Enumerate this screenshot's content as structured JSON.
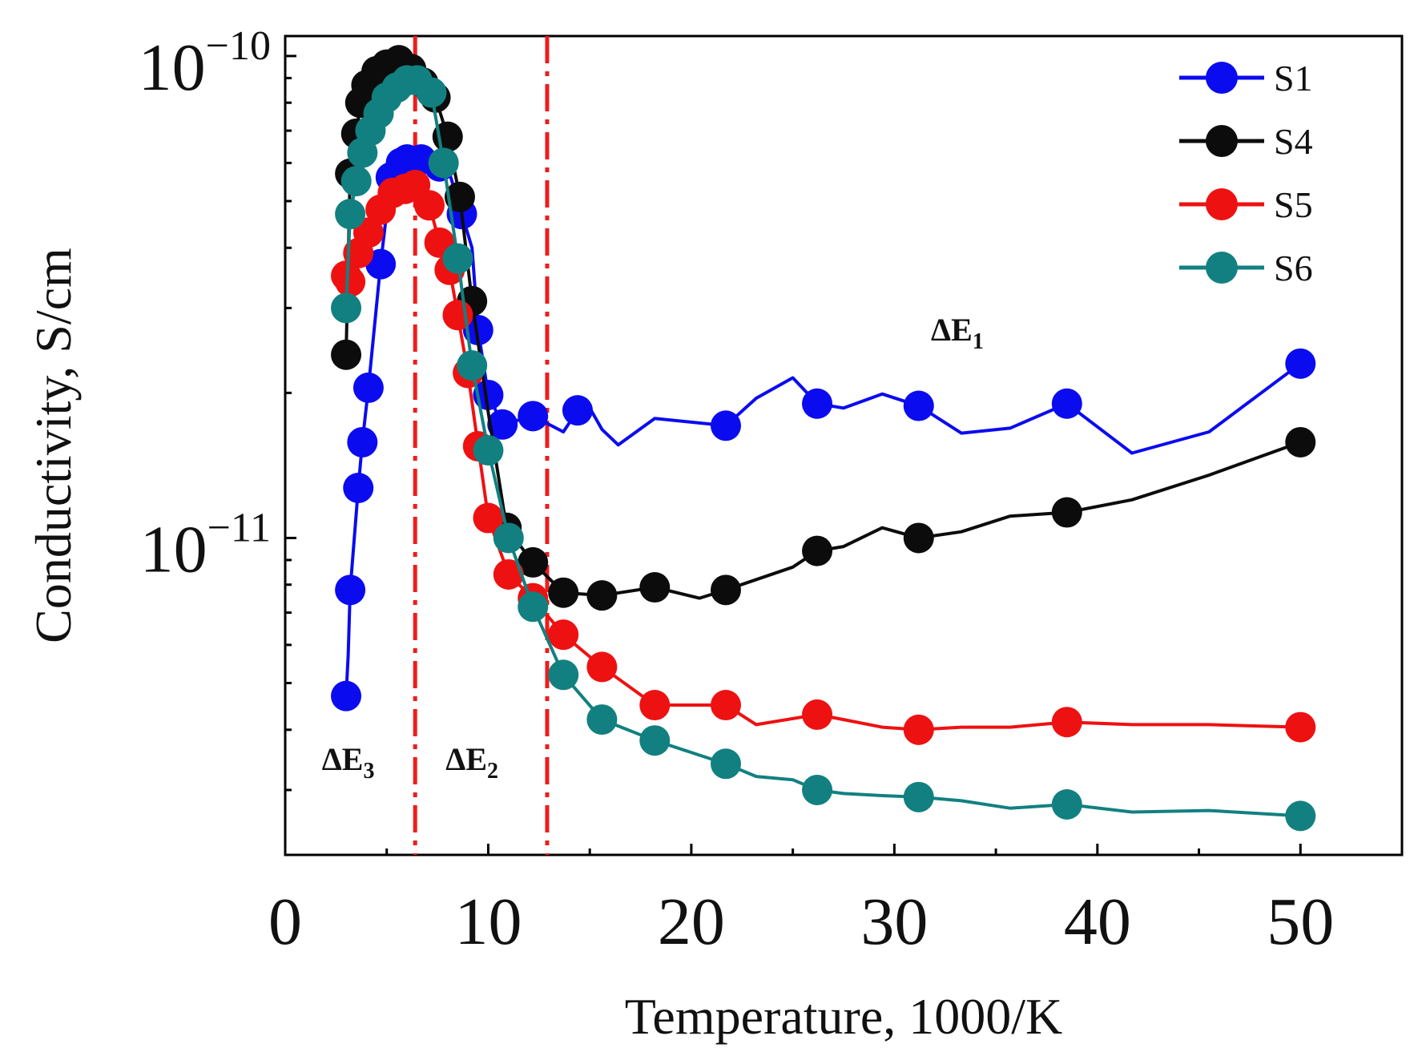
{
  "chart_data": {
    "type": "line",
    "xlabel": "Temperature, 1000/K",
    "ylabel": "Conductivity, S/cm",
    "xlim": [
      0,
      55
    ],
    "ylim": [
      2.2e-12,
      1.1e-10
    ],
    "yscale": "log",
    "x_ticks": [
      0,
      10,
      20,
      30,
      40,
      50
    ],
    "x_tick_labels": [
      "0",
      "10",
      "20",
      "30",
      "40",
      "50"
    ],
    "y_ticks": [
      1e-10,
      1e-11
    ],
    "y_tick_labels": [
      {
        "base": "10",
        "exp": "−10"
      },
      {
        "base": "10",
        "exp": "−11"
      }
    ],
    "legend_position": "top-right",
    "vertical_lines": [
      {
        "x": 6.4,
        "style": "dash-dot",
        "color": "#ee1c1c"
      },
      {
        "x": 12.9,
        "style": "dash-dot",
        "color": "#ee1c1c"
      }
    ],
    "annotations": [
      {
        "text": "ΔE",
        "sub": "1",
        "x": 33.1,
        "y": 2.57e-11
      },
      {
        "text": "ΔE",
        "sub": "2",
        "x": 9.2,
        "y": 3.3e-12
      },
      {
        "text": "ΔE",
        "sub": "3",
        "x": 3.1,
        "y": 3.3e-12
      }
    ],
    "series": [
      {
        "name": "S1",
        "color": "#0b0bf0",
        "x": [
          3.0,
          3.1,
          3.2,
          3.6,
          3.8,
          4.1,
          4.7,
          5.2,
          5.7,
          6.0,
          6.7,
          7.3,
          7.6,
          8.1,
          8.7,
          9.2,
          9.5,
          10.0,
          10.7,
          12.2,
          13.7,
          14.4,
          15.1,
          15.6,
          16.4,
          18.2,
          21.7,
          23.2,
          25.0,
          26.2,
          27.5,
          29.4,
          31.2,
          33.3,
          35.7,
          38.5,
          41.7,
          45.5,
          50.0
        ],
        "y": [
          4.7e-12,
          5.7e-12,
          7.8e-12,
          1.27e-11,
          1.58e-11,
          2.05e-11,
          3.7e-11,
          5.6e-11,
          6e-11,
          6.1e-11,
          6.1e-11,
          6.3e-11,
          5.9e-11,
          5.7e-11,
          4.7e-11,
          4e-11,
          2.7e-11,
          1.98e-11,
          1.72e-11,
          1.79e-11,
          1.66e-11,
          1.84e-11,
          1.83e-11,
          1.68e-11,
          1.56e-11,
          1.77e-11,
          1.71e-11,
          1.95e-11,
          2.15e-11,
          1.9e-11,
          1.86e-11,
          1.99e-11,
          1.88e-11,
          1.65e-11,
          1.69e-11,
          1.9e-11,
          1.5e-11,
          1.66e-11,
          2.3e-11
        ],
        "markers": [
          0,
          2,
          3,
          4,
          5,
          6,
          7,
          8,
          9,
          10,
          12,
          14,
          16,
          17,
          18,
          19,
          21,
          26,
          29,
          32,
          35,
          38
        ]
      },
      {
        "name": "S4",
        "color": "#0c0c0c",
        "x": [
          3.0,
          3.2,
          3.5,
          3.7,
          4.0,
          4.5,
          5.0,
          5.6,
          6.2,
          6.8,
          7.4,
          8.0,
          8.6,
          9.2,
          10.0,
          10.9,
          12.2,
          13.7,
          15.6,
          18.2,
          20.4,
          21.7,
          25.0,
          26.2,
          27.5,
          29.4,
          31.2,
          33.3,
          35.7,
          38.5,
          41.7,
          45.5,
          50.0
        ],
        "y": [
          2.4e-11,
          5.7e-11,
          6.9e-11,
          8e-11,
          8.7e-11,
          9.3e-11,
          9.6e-11,
          9.8e-11,
          9.4e-11,
          8.8e-11,
          8.2e-11,
          6.8e-11,
          5.1e-11,
          3.1e-11,
          1.82e-11,
          1.05e-11,
          8.9e-12,
          7.7e-12,
          7.6e-12,
          7.9e-12,
          7.5e-12,
          7.8e-12,
          8.7e-12,
          9.4e-12,
          9.6e-12,
          1.05e-11,
          1e-11,
          1.03e-11,
          1.11e-11,
          1.13e-11,
          1.2e-11,
          1.35e-11,
          1.58e-11
        ],
        "markers": [
          0,
          1,
          2,
          3,
          4,
          5,
          6,
          7,
          8,
          9,
          10,
          11,
          12,
          13,
          15,
          16,
          17,
          18,
          19,
          21,
          23,
          26,
          29,
          32
        ]
      },
      {
        "name": "S5",
        "color": "#ee1111",
        "x": [
          3.0,
          3.2,
          3.6,
          4.1,
          4.7,
          5.3,
          5.9,
          6.4,
          7.1,
          7.6,
          8.1,
          8.5,
          9.0,
          9.5,
          10.0,
          11.0,
          12.2,
          13.7,
          15.6,
          18.2,
          21.7,
          23.2,
          26.2,
          27.5,
          29.4,
          31.2,
          33.3,
          35.7,
          38.5,
          41.7,
          45.5,
          50.0
        ],
        "y": [
          3.5e-11,
          3.4e-11,
          3.9e-11,
          4.3e-11,
          4.8e-11,
          5.2e-11,
          5.3e-11,
          5.4e-11,
          4.9e-11,
          4.1e-11,
          3.6e-11,
          2.9e-11,
          2.2e-11,
          1.55e-11,
          1.1e-11,
          8.4e-12,
          7.5e-12,
          6.3e-12,
          5.4e-12,
          4.5e-12,
          4.5e-12,
          4.1e-12,
          4.3e-12,
          4.2e-12,
          4.05e-12,
          4e-12,
          4.05e-12,
          4.05e-12,
          4.15e-12,
          4.1e-12,
          4.1e-12,
          4.05e-12
        ],
        "markers": [
          0,
          1,
          2,
          3,
          4,
          5,
          6,
          7,
          8,
          9,
          10,
          11,
          12,
          13,
          14,
          15,
          16,
          17,
          18,
          19,
          20,
          22,
          25,
          28,
          31
        ]
      },
      {
        "name": "S6",
        "color": "#128080",
        "x": [
          3.0,
          3.2,
          3.5,
          3.8,
          4.2,
          4.6,
          5.0,
          5.5,
          6.0,
          6.5,
          7.2,
          7.8,
          8.5,
          9.2,
          10.0,
          11.0,
          12.2,
          13.7,
          15.6,
          18.2,
          21.7,
          23.2,
          25.0,
          26.2,
          27.5,
          29.4,
          31.2,
          33.3,
          35.7,
          38.5,
          41.7,
          45.5,
          50.0
        ],
        "y": [
          3e-11,
          4.7e-11,
          5.5e-11,
          6.3e-11,
          7e-11,
          7.6e-11,
          8.2e-11,
          8.6e-11,
          8.9e-11,
          8.9e-11,
          8.4e-11,
          6e-11,
          3.8e-11,
          2.28e-11,
          1.52e-11,
          1e-11,
          7.2e-12,
          5.2e-12,
          4.2e-12,
          3.8e-12,
          3.4e-12,
          3.2e-12,
          3.15e-12,
          3e-12,
          2.95e-12,
          2.92e-12,
          2.9e-12,
          2.85e-12,
          2.75e-12,
          2.8e-12,
          2.7e-12,
          2.72e-12,
          2.65e-12
        ],
        "markers": [
          0,
          1,
          2,
          3,
          4,
          5,
          6,
          7,
          8,
          9,
          10,
          11,
          12,
          13,
          14,
          15,
          16,
          17,
          18,
          19,
          20,
          23,
          26,
          29,
          32
        ]
      }
    ]
  }
}
